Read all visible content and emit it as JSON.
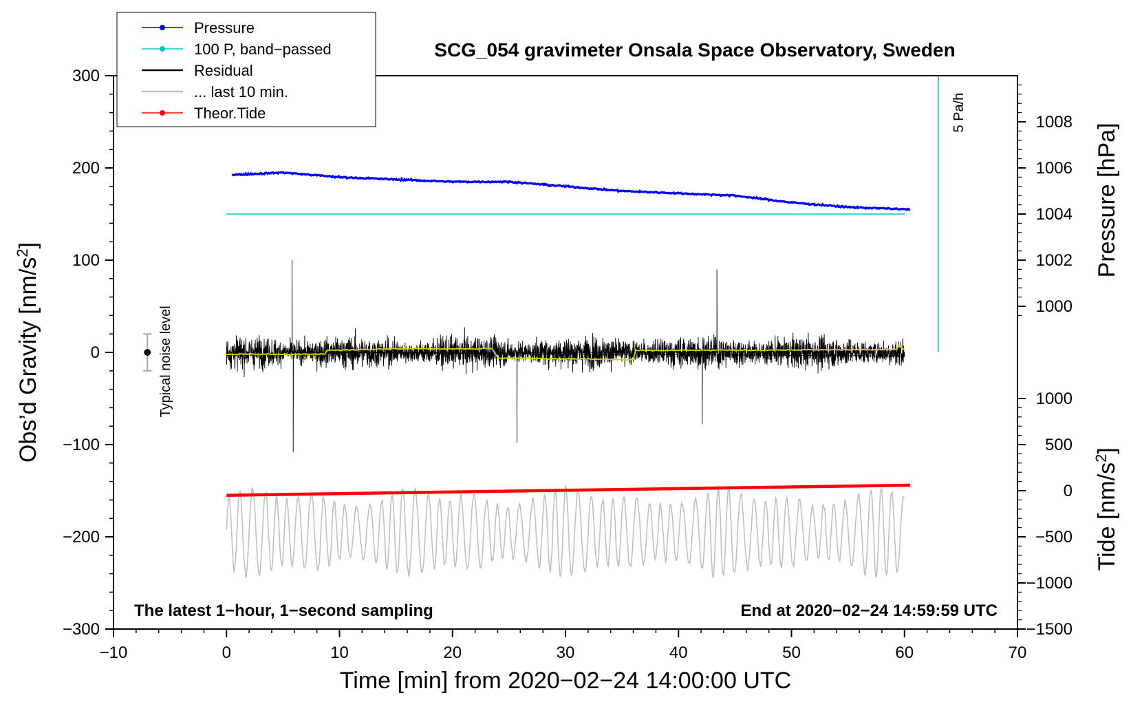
{
  "chart_data": {
    "type": "line",
    "title": "SCG_054 gravimeter Onsala Space Observatory, Sweden",
    "xlabel": "Time [min] from 2020−02−24 14:00:00 UTC",
    "ylabel_left": "Obs’d Gravity [nm/s",
    "ylabel_left_sup": "2",
    "ylabel_left_close": "]",
    "ylabel_right_top": "Pressure [hPa]",
    "ylabel_right_bottom": "Tide [nm/s",
    "ylabel_right_bottom_sup": "2",
    "ylabel_right_bottom_close": "]",
    "xlim": [
      -10,
      70
    ],
    "ylim": [
      -300,
      300
    ],
    "x_ticks": [
      -10,
      0,
      10,
      20,
      30,
      40,
      50,
      60,
      70
    ],
    "x_tick_labels": [
      "−10",
      "0",
      "10",
      "20",
      "30",
      "40",
      "50",
      "60",
      "70"
    ],
    "y_ticks": [
      300,
      200,
      100,
      0,
      -100,
      -200,
      -300
    ],
    "y_tick_labels": [
      "300",
      "200",
      "100",
      "0",
      "−100",
      "−200",
      "−300"
    ],
    "pressure_axis": {
      "ticks": [
        1008,
        1006,
        1004,
        1002,
        1000
      ],
      "tick_labels": [
        "1008",
        "1006",
        "1004",
        "1002",
        "1000"
      ],
      "gravity_at_1008": 250,
      "gravity_per_hpa": 25
    },
    "tide_axis": {
      "ticks": [
        1000,
        500,
        0,
        -500,
        -1000,
        -1500
      ],
      "tick_labels": [
        "1000",
        "500",
        "0",
        "−500",
        "−1000",
        "−1500"
      ],
      "gravity_at_0": -150,
      "gravity_per_500": 50
    },
    "series": [
      {
        "name": "Pressure",
        "color": "#0000ff",
        "x": [
          0.5,
          5,
          10,
          15,
          20,
          25,
          30,
          35,
          40,
          45,
          50,
          55,
          60.5
        ],
        "values": [
          1005.7,
          1005.8,
          1005.6,
          1005.5,
          1005.4,
          1005.4,
          1005.2,
          1005.0,
          1004.9,
          1004.8,
          1004.5,
          1004.3,
          1004.2
        ]
      },
      {
        "name": "100 P, band−passed",
        "color": "#00c8c8",
        "x": [
          0,
          60
        ],
        "values": [
          150,
          150
        ]
      },
      {
        "name": "Residual",
        "color": "#000000",
        "amplitude_typical": 35,
        "amplitude_peaks": [
          [
            5.8,
            100
          ],
          [
            5.9,
            -108
          ],
          [
            25.7,
            -98
          ],
          [
            43.4,
            90
          ],
          [
            42.1,
            -78
          ]
        ],
        "x_range": [
          0,
          60
        ]
      },
      {
        "name": "... last 10 min.",
        "color": "#c0c0c0",
        "center": -195,
        "amplitude": 50,
        "x_range": [
          0,
          60
        ]
      },
      {
        "name": "Theor.Tide",
        "color": "#ff0000",
        "x": [
          0,
          60.5
        ],
        "values": [
          -155,
          -144
        ]
      }
    ],
    "residual_smooth": {
      "color": "#d0d000",
      "x": [
        0,
        8.7,
        8.9,
        14,
        23.5,
        24,
        36,
        36.2,
        59.3,
        59.5,
        60
      ],
      "values": [
        -2,
        -2,
        2,
        4,
        4,
        -6,
        -8,
        2,
        3,
        8,
        3
      ]
    },
    "noise_level": {
      "x": -7,
      "center": 0,
      "half_range": 20,
      "label": "Typical noise level"
    },
    "cyan_scale": {
      "x": 63,
      "top": 300,
      "bottom": 0,
      "label": "5 Pa/h"
    },
    "annotations": {
      "bottom_left": "The latest 1−hour, 1−second sampling",
      "bottom_right": "End at 2020−02−24 14:59:59 UTC"
    },
    "legend": {
      "placement": "top-left",
      "entries": [
        {
          "label": "Pressure",
          "color": "#0000ff",
          "marker": true
        },
        {
          "label": "100 P, band−passed",
          "color": "#00c8c8",
          "marker": true
        },
        {
          "label": "Residual",
          "color": "#000000",
          "marker": false
        },
        {
          "label": "... last 10 min.",
          "color": "#c0c0c0",
          "marker": false
        },
        {
          "label": "Theor.Tide",
          "color": "#ff0000",
          "marker": true
        }
      ]
    }
  }
}
